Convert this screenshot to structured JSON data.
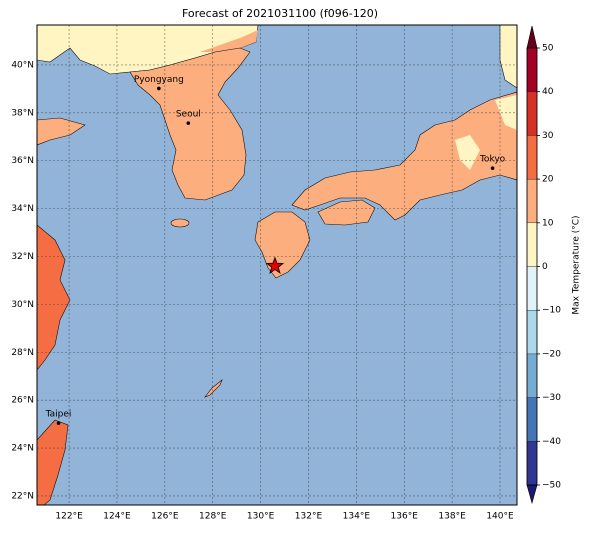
{
  "map": {
    "title": "Forecast of 2021031100 (f096-120)",
    "lonlim": [
      120.66,
      140.71
    ],
    "latlim": [
      21.62,
      41.67
    ],
    "lonticks": [
      {
        "value": 122,
        "label": "122°E"
      },
      {
        "value": 124,
        "label": "124°E"
      },
      {
        "value": 126,
        "label": "126°E"
      },
      {
        "value": 128,
        "label": "128°E"
      },
      {
        "value": 130,
        "label": "130°E"
      },
      {
        "value": 132,
        "label": "132°E"
      },
      {
        "value": 134,
        "label": "134°E"
      },
      {
        "value": 136,
        "label": "136°E"
      },
      {
        "value": 138,
        "label": "138°E"
      },
      {
        "value": 140,
        "label": "140°E"
      }
    ],
    "latticks": [
      {
        "value": 22,
        "label": "22°N"
      },
      {
        "value": 24,
        "label": "24°N"
      },
      {
        "value": 26,
        "label": "26°N"
      },
      {
        "value": 28,
        "label": "28°N"
      },
      {
        "value": 30,
        "label": "30°N"
      },
      {
        "value": 32,
        "label": "32°N"
      },
      {
        "value": 34,
        "label": "34°N"
      },
      {
        "value": 36,
        "label": "36°N"
      },
      {
        "value": 38,
        "label": "38°N"
      },
      {
        "value": 40,
        "label": "40°N"
      }
    ],
    "cities": [
      {
        "name": "Pyongyang",
        "lon": 125.75,
        "lat": 39.02
      },
      {
        "name": "Seoul",
        "lon": 126.98,
        "lat": 37.57
      },
      {
        "name": "Tokyo",
        "lon": 139.69,
        "lat": 35.69
      },
      {
        "name": "Taipei",
        "lon": 121.56,
        "lat": 25.04
      }
    ],
    "marker": {
      "lon": 130.6,
      "lat": 31.6
    },
    "colorbar": {
      "label": "Max Temperature (°C)",
      "lim": [
        -50,
        50
      ],
      "ticks": [
        {
          "value": -50,
          "label": "−50"
        },
        {
          "value": -40,
          "label": "−40"
        },
        {
          "value": -30,
          "label": "−30"
        },
        {
          "value": -20,
          "label": "−20"
        },
        {
          "value": -10,
          "label": "−10"
        },
        0,
        10,
        20,
        30,
        40,
        50
      ],
      "colors": [
        "#313695",
        "#4575b4",
        "#74add1",
        "#abd9e9",
        "#e0f3f8",
        "#fff5c3",
        "#fdae7e",
        "#f46d43",
        "#d73027",
        "#a50026"
      ],
      "extend_colors": [
        "#1a1a6e",
        "#67001f"
      ]
    }
  }
}
